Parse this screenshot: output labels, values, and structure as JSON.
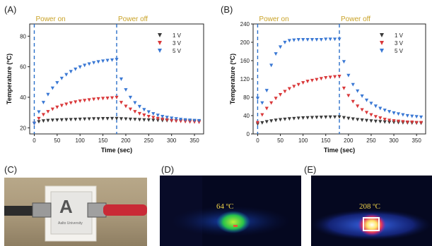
{
  "panels": {
    "A": "(A)",
    "B": "(B)",
    "C": "(C)",
    "D": "(D)",
    "E": "(E)"
  },
  "colors": {
    "s1V": "#3a3a3a",
    "s3V": "#d9383a",
    "s5V": "#3a78d4",
    "annotation": "#c9a227",
    "marker_line": "#2a6fc9"
  },
  "chart_data": [
    {
      "type": "scatter",
      "panel": "A",
      "xlabel": "Time (sec)",
      "ylabel": "Temperature (ºC)",
      "xlim": [
        -10,
        370
      ],
      "ylim": [
        16,
        88
      ],
      "xticks": [
        0,
        50,
        100,
        150,
        200,
        250,
        300,
        350
      ],
      "yticks": [
        20,
        40,
        60,
        80
      ],
      "annotations": [
        "Power on",
        "Power off"
      ],
      "vlines": [
        0,
        180
      ],
      "marker": "triangle-down",
      "legend_position": "top-right",
      "series": [
        {
          "name": "1 V",
          "color": "#3a3a3a",
          "x": [
            0,
            10,
            20,
            30,
            40,
            50,
            60,
            70,
            80,
            90,
            100,
            110,
            120,
            130,
            140,
            150,
            160,
            170,
            180,
            190,
            200,
            210,
            220,
            230,
            240,
            250,
            260,
            270,
            280,
            290,
            300,
            310,
            320,
            330,
            340,
            350,
            360
          ],
          "y": [
            23,
            24.1,
            24.6,
            24.9,
            25.1,
            25.2,
            25.3,
            25.4,
            25.5,
            25.6,
            25.7,
            25.8,
            25.9,
            26,
            26,
            26.1,
            26.1,
            26.2,
            26.2,
            26,
            25.9,
            25.7,
            25.6,
            25.4,
            25.3,
            25.2,
            25.1,
            25,
            24.9,
            24.8,
            24.7,
            24.6,
            24.6,
            24.5,
            24.5,
            24.4,
            24.4
          ]
        },
        {
          "name": "3 V",
          "color": "#d9383a",
          "x": [
            0,
            10,
            20,
            30,
            40,
            50,
            60,
            70,
            80,
            90,
            100,
            110,
            120,
            130,
            140,
            150,
            160,
            170,
            180,
            190,
            200,
            210,
            220,
            230,
            240,
            250,
            260,
            270,
            280,
            290,
            300,
            310,
            320,
            330,
            340,
            350,
            360
          ],
          "y": [
            23,
            26.2,
            28.7,
            30.7,
            32.3,
            33.6,
            34.7,
            35.6,
            36.4,
            37,
            37.6,
            38,
            38.4,
            38.8,
            39.1,
            39.3,
            39.5,
            39.7,
            40,
            36.7,
            34.2,
            32.3,
            30.7,
            29.4,
            28.4,
            27.5,
            26.8,
            26.2,
            25.7,
            25.3,
            24.9,
            24.6,
            24.4,
            24.2,
            24,
            23.9,
            23.8
          ]
        },
        {
          "name": "5 V",
          "color": "#3a78d4",
          "x": [
            0,
            10,
            20,
            30,
            40,
            50,
            60,
            70,
            80,
            90,
            100,
            110,
            120,
            130,
            140,
            150,
            160,
            170,
            180,
            190,
            200,
            210,
            220,
            230,
            240,
            250,
            260,
            270,
            280,
            290,
            300,
            310,
            320,
            330,
            340,
            350,
            360
          ],
          "y": [
            23,
            30.5,
            36.7,
            41.9,
            46.1,
            49.6,
            52.5,
            54.9,
            56.9,
            58.5,
            59.9,
            61,
            61.9,
            62.7,
            63.3,
            63.8,
            64.2,
            64.5,
            64.8,
            52,
            45,
            40,
            36.5,
            34,
            32,
            30.5,
            29.3,
            28.3,
            27.5,
            26.9,
            26.4,
            26,
            25.6,
            25.3,
            25.1,
            24.9,
            24.8
          ]
        }
      ]
    },
    {
      "type": "scatter",
      "panel": "B",
      "xlabel": "Time (sec)",
      "ylabel": "Temperature (ºC)",
      "xlim": [
        -10,
        370
      ],
      "ylim": [
        0,
        240
      ],
      "xticks": [
        0,
        50,
        100,
        150,
        200,
        250,
        300,
        350
      ],
      "yticks": [
        0,
        40,
        80,
        120,
        160,
        200,
        240
      ],
      "annotations": [
        "Power on",
        "Power off"
      ],
      "vlines": [
        0,
        180
      ],
      "marker": "triangle-down",
      "legend_position": "top-right",
      "series": [
        {
          "name": "1 V",
          "color": "#3a3a3a",
          "x": [
            0,
            10,
            20,
            30,
            40,
            50,
            60,
            70,
            80,
            90,
            100,
            110,
            120,
            130,
            140,
            150,
            160,
            170,
            180,
            190,
            200,
            210,
            220,
            230,
            240,
            250,
            260,
            270,
            280,
            290,
            300,
            310,
            320,
            330,
            340,
            350,
            360
          ],
          "y": [
            22,
            24.6,
            26.9,
            28.7,
            30.2,
            31.4,
            32.4,
            33.3,
            34,
            34.7,
            35.2,
            35.7,
            36,
            36.4,
            36.7,
            36.9,
            37.1,
            37.2,
            37.4,
            35.8,
            34.3,
            32.9,
            31.7,
            30.6,
            29.6,
            28.7,
            27.9,
            27.2,
            26.6,
            26,
            25.6,
            25.2,
            24.8,
            24.5,
            24.2,
            24,
            23.8
          ]
        },
        {
          "name": "3 V",
          "color": "#d9383a",
          "x": [
            0,
            10,
            20,
            30,
            40,
            50,
            60,
            70,
            80,
            90,
            100,
            110,
            120,
            130,
            140,
            150,
            160,
            170,
            180,
            190,
            200,
            210,
            220,
            230,
            240,
            250,
            260,
            270,
            280,
            290,
            300,
            310,
            320,
            330,
            340,
            350,
            360
          ],
          "y": [
            25,
            42,
            56,
            68,
            78,
            86,
            93,
            99,
            104,
            108,
            112,
            115,
            117,
            119,
            121,
            123,
            124,
            125,
            126,
            100,
            84,
            71,
            61,
            53,
            47,
            42,
            38,
            35,
            32,
            30,
            29,
            28,
            27,
            26,
            26,
            25,
            25
          ]
        },
        {
          "name": "5 V",
          "color": "#3a78d4",
          "x": [
            0,
            10,
            20,
            30,
            40,
            50,
            60,
            70,
            80,
            90,
            100,
            110,
            120,
            130,
            140,
            150,
            160,
            170,
            180,
            190,
            200,
            210,
            220,
            230,
            240,
            250,
            260,
            270,
            280,
            290,
            300,
            310,
            320,
            330,
            340,
            350,
            360
          ],
          "y": [
            78,
            68,
            95,
            150,
            175,
            190,
            200,
            204,
            205,
            206,
            206,
            206,
            206,
            206,
            206,
            207,
            207,
            207,
            207,
            158,
            128,
            108,
            94,
            83,
            74,
            67,
            61,
            56,
            52,
            49,
            46,
            44,
            42,
            40,
            39,
            38,
            37
          ]
        }
      ]
    }
  ],
  "thermal": {
    "D": {
      "label": "64 ºC"
    },
    "E": {
      "label": "208 ºC"
    }
  },
  "sample_photo": {
    "logo_letter": "A",
    "logo_text": "Aalto University"
  }
}
